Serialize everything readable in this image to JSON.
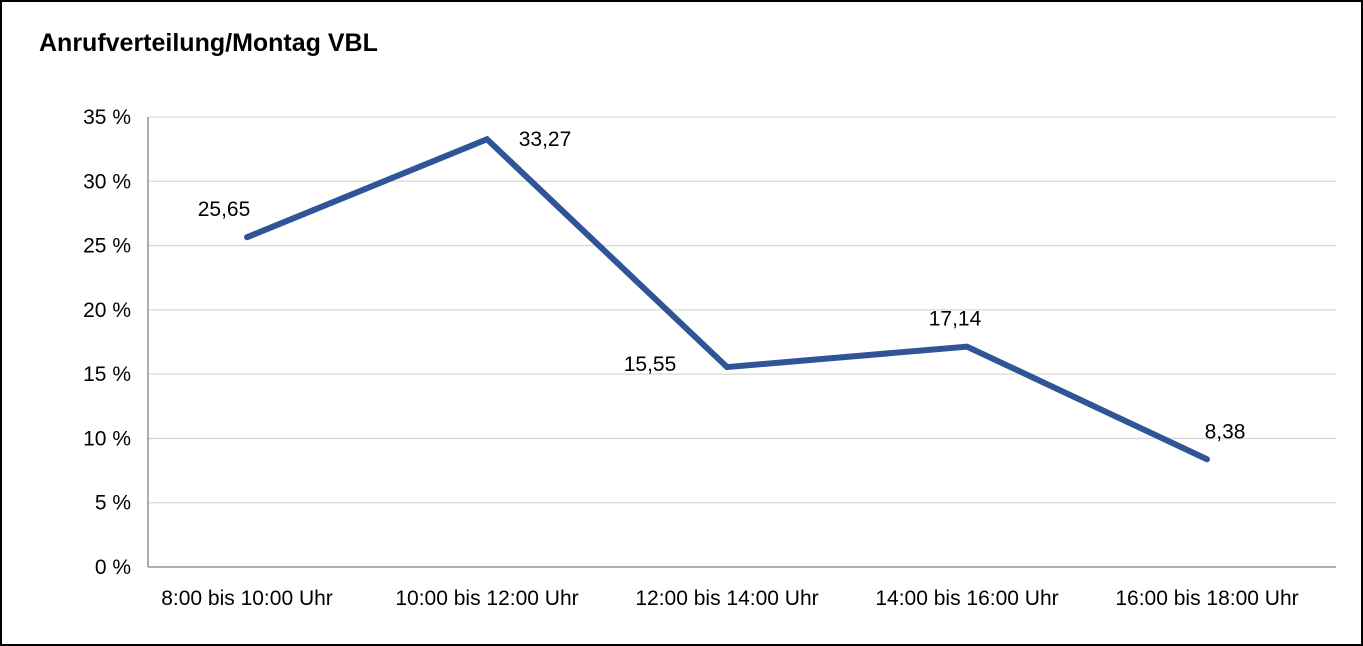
{
  "chart_data": {
    "type": "line",
    "title": "Anrufverteilung/Montag VBL",
    "categories": [
      "8:00 bis 10:00 Uhr",
      "10:00 bis 12:00 Uhr",
      "12:00 bis 14:00 Uhr",
      "14:00 bis 16:00 Uhr",
      "16:00 bis 18:00 Uhr"
    ],
    "values": [
      25.65,
      33.27,
      15.55,
      17.14,
      8.38
    ],
    "value_labels": [
      "25,65",
      "33,27",
      "15,55",
      "17,14",
      "8,38"
    ],
    "y_tick_labels": [
      "0 %",
      "5 %",
      "10 %",
      "15 %",
      "20 %",
      "25 %",
      "30 %",
      "35 %"
    ],
    "ylim": [
      0,
      35
    ],
    "y_tick_step": 5,
    "grid": true,
    "legend_position": "none",
    "colors": {
      "line": "#2F5597",
      "gridline": "#D9D9D9",
      "axis": "#7F7F7F",
      "text": "#000000",
      "border": "#000000"
    }
  }
}
